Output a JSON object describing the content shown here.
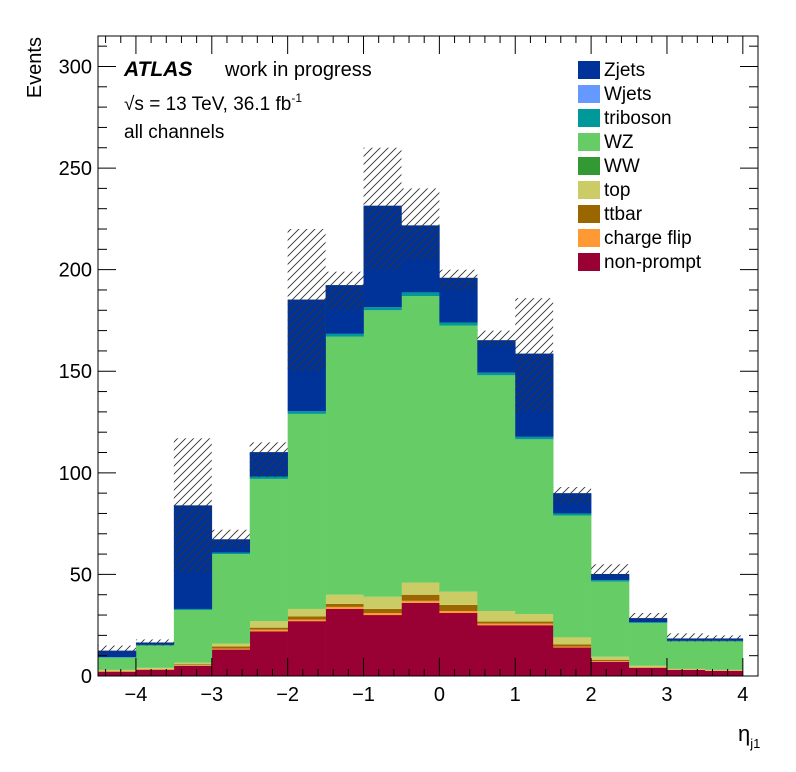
{
  "chart_data": {
    "type": "bar",
    "stacked": true,
    "histogram": true,
    "xlabel": "η",
    "xlabel_sub": "j1",
    "ylabel": "Events",
    "xlim": [
      -4.5,
      4.2
    ],
    "ylim": [
      0,
      315
    ],
    "x_ticks": [
      -4,
      -3,
      -2,
      -1,
      0,
      1,
      2,
      3,
      4
    ],
    "x_tick_labels": [
      "−4",
      "−3",
      "−2",
      "−1",
      "0",
      "1",
      "2",
      "3",
      "4"
    ],
    "y_ticks": [
      0,
      50,
      100,
      150,
      200,
      250,
      300
    ],
    "y_tick_labels": [
      "0",
      "50",
      "100",
      "150",
      "200",
      "250",
      "300"
    ],
    "bin_edges": [
      -4.5,
      -4.0,
      -3.5,
      -3.0,
      -2.5,
      -2.0,
      -1.5,
      -1.0,
      -0.5,
      0.0,
      0.5,
      1.0,
      1.5,
      2.0,
      2.5,
      3.0,
      3.5,
      4.0,
      4.2
    ],
    "series": [
      {
        "name": "non-prompt",
        "color": "#990033",
        "values": [
          2,
          3,
          5,
          13,
          22,
          27,
          33,
          30,
          36,
          31,
          25,
          25,
          14,
          7,
          4,
          3,
          2.5
        ]
      },
      {
        "name": "charge flip",
        "color": "#ff9933",
        "values": [
          0.3,
          0.3,
          0.3,
          0.5,
          0.8,
          0.8,
          1,
          1,
          1,
          1,
          0.8,
          0.8,
          0.5,
          0.3,
          0.3,
          0.2,
          0.2
        ]
      },
      {
        "name": "ttbar",
        "color": "#996600",
        "values": [
          0.2,
          0.2,
          0.5,
          1,
          1,
          1.5,
          1.5,
          2,
          3,
          3,
          1,
          1,
          1,
          0.7,
          0.2,
          0.1,
          0.1
        ]
      },
      {
        "name": "top",
        "color": "#cccc66",
        "values": [
          0.5,
          0.5,
          0.7,
          1.5,
          3.2,
          3.7,
          4.5,
          6,
          6,
          6.5,
          5.2,
          3.7,
          3.5,
          1.5,
          0.5,
          0.2,
          0.2
        ]
      },
      {
        "name": "WW",
        "color": "#339933",
        "values": [
          0,
          0,
          0,
          0,
          0,
          0,
          0,
          0,
          0,
          0,
          0,
          0,
          0,
          0,
          0,
          0,
          0
        ]
      },
      {
        "name": "WZ",
        "color": "#66cc66",
        "values": [
          6,
          11,
          26,
          44,
          70,
          96,
          127,
          141,
          141,
          131,
          116,
          86,
          60,
          37,
          21,
          13.5,
          14
        ]
      },
      {
        "name": "triboson",
        "color": "#009999",
        "values": [
          0.3,
          0.3,
          0.5,
          0.8,
          1.2,
          1.3,
          1.4,
          1.5,
          1.8,
          1.5,
          1.3,
          1.2,
          1,
          0.7,
          0.5,
          0.3,
          0.3
        ]
      },
      {
        "name": "Wjets",
        "color": "#6699ff",
        "values": [
          0,
          0,
          0,
          0,
          0,
          0,
          0,
          0,
          0,
          0,
          0,
          0,
          0,
          0,
          0,
          0,
          0
        ]
      },
      {
        "name": "Zjets",
        "color": "#003399",
        "values": [
          3.2,
          1.2,
          51,
          6.5,
          12,
          55,
          24,
          50,
          33,
          22,
          16,
          41,
          10,
          3,
          2,
          1.2,
          1.2
        ]
      }
    ],
    "uncertainty": {
      "hatched": true,
      "up": [
        15,
        18,
        117,
        72,
        115,
        220,
        199,
        260,
        240,
        200,
        170,
        186,
        93,
        55,
        31,
        21,
        20
      ],
      "down": [
        11,
        15,
        51,
        63,
        98,
        150,
        180,
        200,
        205,
        190,
        162,
        130,
        85,
        49,
        27,
        17,
        17
      ]
    },
    "legend_position": "top-right"
  },
  "atlas_label": "ATLAS",
  "status_label": "work in progress",
  "energy_label": {
    "sqrt": "√s",
    "text": " = 13 TeV, 36.1 fb",
    "superscript": "-1"
  },
  "channel_label": "all channels",
  "legend": [
    {
      "name": "Zjets",
      "color": "#003399"
    },
    {
      "name": "Wjets",
      "color": "#6699ff"
    },
    {
      "name": "triboson",
      "color": "#009999"
    },
    {
      "name": "WZ",
      "color": "#66cc66"
    },
    {
      "name": "WW",
      "color": "#339933"
    },
    {
      "name": "top",
      "color": "#cccc66"
    },
    {
      "name": "ttbar",
      "color": "#996600"
    },
    {
      "name": "charge flip",
      "color": "#ff9933"
    },
    {
      "name": "non-prompt",
      "color": "#990033"
    }
  ]
}
